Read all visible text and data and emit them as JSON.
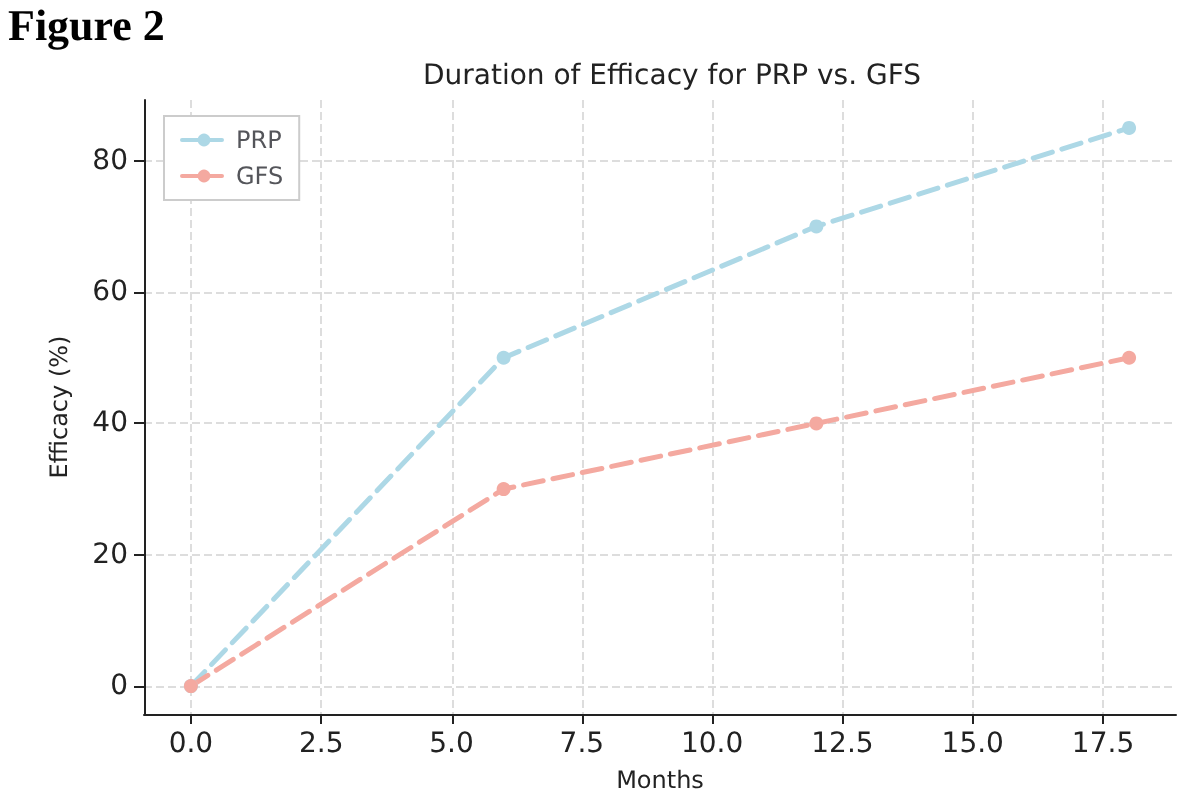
{
  "chart_data": {
    "type": "line",
    "title": "Duration of Efficacy for PRP vs. GFS",
    "xlabel": "Months",
    "ylabel": "Efficacy (%)",
    "annotations": [
      "Figure 2"
    ],
    "x": [
      0,
      6,
      12,
      18
    ],
    "series": [
      {
        "name": "PRP",
        "color": "#add8e6",
        "values": [
          0,
          50,
          70,
          85
        ]
      },
      {
        "name": "GFS",
        "color": "#f4a9a0",
        "values": [
          0,
          30,
          40,
          50
        ]
      }
    ],
    "xlim": [
      -0.9,
      18.9
    ],
    "xticks": [
      {
        "value": 0,
        "label": "0.0"
      },
      {
        "value": 2.5,
        "label": "2.5"
      },
      {
        "value": 5,
        "label": "5.0"
      },
      {
        "value": 7.5,
        "label": "7.5"
      },
      {
        "value": 10,
        "label": "10.0"
      },
      {
        "value": 12.5,
        "label": "12.5"
      },
      {
        "value": 15,
        "label": "15.0"
      },
      {
        "value": 17.5,
        "label": "17.5"
      }
    ],
    "ylim": [
      -4.25,
      89.25
    ],
    "yticks": [
      0,
      20,
      40,
      60,
      80
    ],
    "grid": true,
    "legend": "top left",
    "marker": "circle",
    "line_style": "dashed"
  }
}
